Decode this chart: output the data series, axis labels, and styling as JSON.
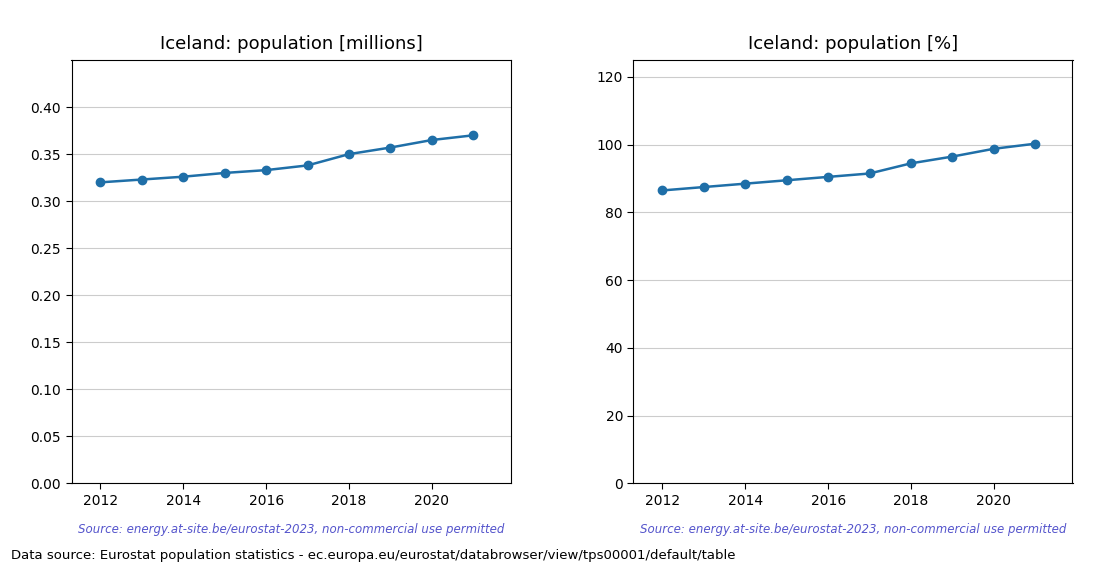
{
  "years": [
    2012,
    2013,
    2014,
    2015,
    2016,
    2017,
    2018,
    2019,
    2020,
    2021
  ],
  "pop_millions": [
    0.32,
    0.323,
    0.326,
    0.33,
    0.333,
    0.338,
    0.35,
    0.357,
    0.365,
    0.37
  ],
  "pop_percent": [
    86.5,
    87.5,
    88.5,
    89.5,
    90.5,
    91.5,
    94.5,
    96.5,
    98.8,
    100.3
  ],
  "title_left": "Iceland: population [millions]",
  "title_right": "Iceland: population [%]",
  "source_text": "Source: energy.at-site.be/eurostat-2023, non-commercial use permitted",
  "footer_text": "Data source: Eurostat population statistics - ec.europa.eu/eurostat/databrowser/view/tps00001/default/table",
  "line_color": "#1f6fa8",
  "source_color": "#5555cc",
  "ylim_left": [
    0.0,
    0.45
  ],
  "yticks_left": [
    0.0,
    0.05,
    0.1,
    0.15,
    0.2,
    0.25,
    0.3,
    0.35,
    0.4
  ],
  "ylim_right": [
    0,
    125
  ],
  "yticks_right": [
    0,
    20,
    40,
    60,
    80,
    100,
    120
  ],
  "xticks": [
    2012,
    2014,
    2016,
    2018,
    2020
  ],
  "background_color": "#ffffff",
  "grid_color": "#cccccc"
}
